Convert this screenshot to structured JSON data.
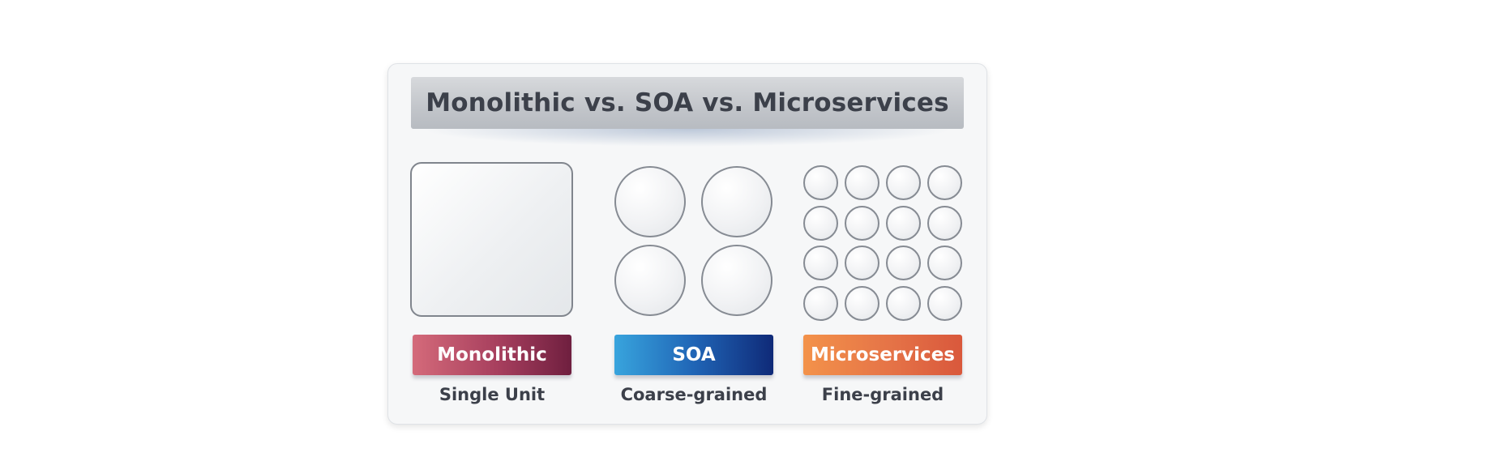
{
  "title": "Monolithic vs. SOA vs. Microservices",
  "columns": [
    {
      "label": "Monolithic",
      "caption": "Single Unit",
      "color_start": "#d46a7a",
      "color_end": "#6f1f3f"
    },
    {
      "label": "SOA",
      "caption": "Coarse-grained",
      "color_start": "#38a4dd",
      "color_end": "#0f2a78"
    },
    {
      "label": "Microservices",
      "caption": "Fine-grained",
      "color_start": "#f3924a",
      "color_end": "#d9583c"
    }
  ],
  "soa_service_count": 4,
  "microservice_count": 16
}
